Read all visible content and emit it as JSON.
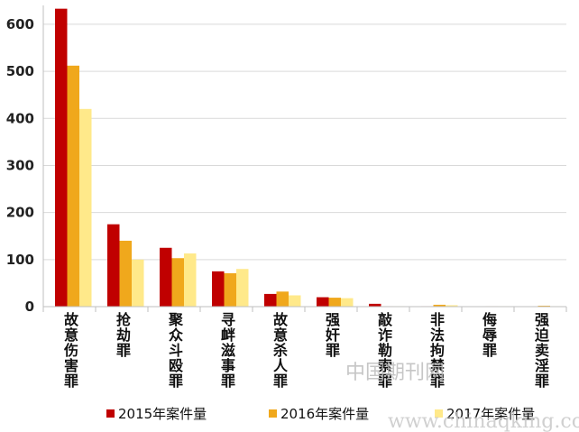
{
  "chart_data": {
    "type": "bar",
    "title": "",
    "xlabel": "",
    "ylabel": "",
    "ylim": [
      0,
      640
    ],
    "yticks": [
      0,
      100,
      200,
      300,
      400,
      500,
      600
    ],
    "grid": true,
    "legend_position": "bottom",
    "categories": [
      "故意伤害罪",
      "抢劫罪",
      "聚众斗殴罪",
      "寻衅滋事罪",
      "故意杀人罪",
      "强奸罪",
      "敲诈勒索罪",
      "非法拘禁罪",
      "侮辱罪",
      "强迫卖淫罪"
    ],
    "series": [
      {
        "name": "2015年案件量",
        "color": "#c00000",
        "values": [
          633,
          175,
          125,
          75,
          27,
          20,
          6,
          1,
          0,
          0
        ]
      },
      {
        "name": "2016年案件量",
        "color": "#f0a81c",
        "values": [
          512,
          140,
          103,
          71,
          32,
          19,
          1,
          4,
          1,
          2
        ]
      },
      {
        "name": "2017年案件量",
        "color": "#ffe98a",
        "values": [
          420,
          100,
          113,
          80,
          24,
          18,
          1,
          3,
          1,
          1
        ]
      }
    ]
  },
  "watermark": {
    "cn": "中国期刊网",
    "en": "www.chinaqking.com"
  }
}
